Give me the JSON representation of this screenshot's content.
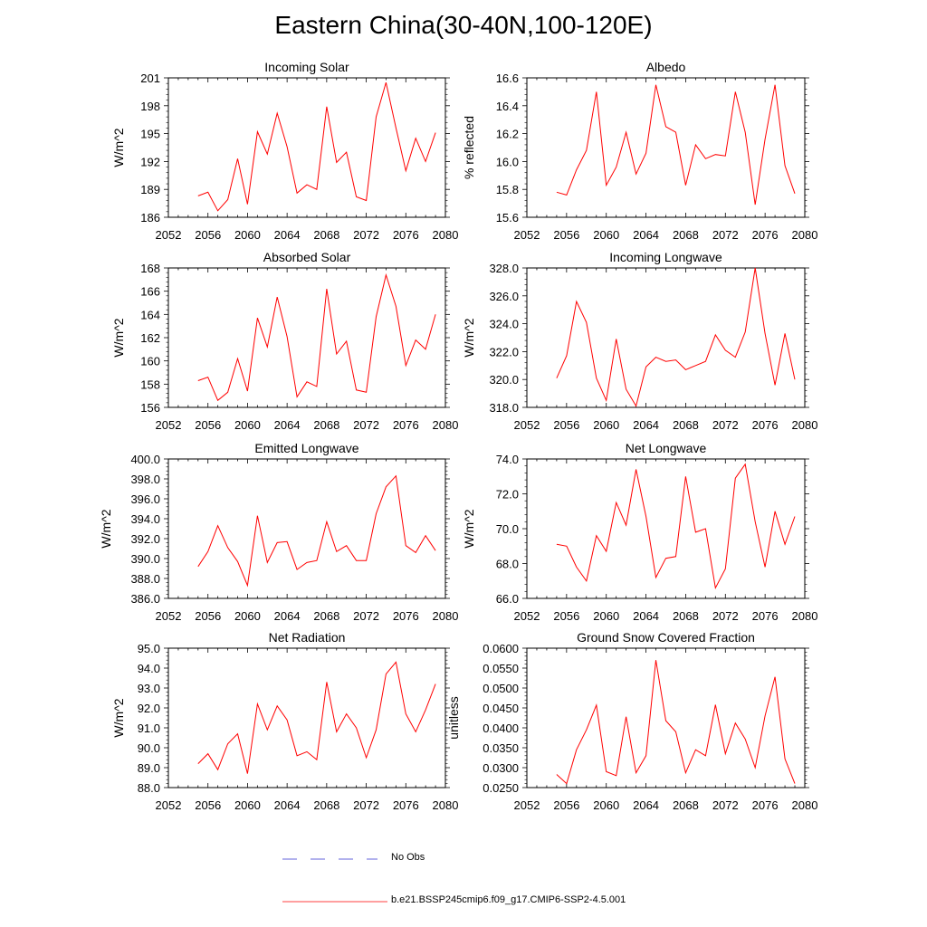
{
  "title": "Eastern China(30-40N,100-120E)",
  "colors": {
    "model": "#ff0000",
    "obs": "#3030d0",
    "axis": "#000000"
  },
  "legend": [
    {
      "label": "No Obs",
      "style": "dashed",
      "color": "#3030d0"
    },
    {
      "label": "b.e21.BSSP245cmip6.f09_g17.CMIP6-SSP2-4.5.001",
      "style": "solid",
      "color": "#ff0000"
    }
  ],
  "chart_data": [
    {
      "type": "line",
      "title": "Incoming Solar",
      "ylabel": "W/m^2",
      "xlim": [
        2052,
        2080
      ],
      "ylim": [
        186,
        201
      ],
      "xticks": [
        "2052",
        "2056",
        "2060",
        "2064",
        "2068",
        "2072",
        "2076",
        "2080"
      ],
      "yticks": [
        "186",
        "189",
        "192",
        "195",
        "198",
        "201"
      ],
      "x": [
        2055,
        2056,
        2057,
        2058,
        2059,
        2060,
        2061,
        2062,
        2063,
        2064,
        2065,
        2066,
        2067,
        2068,
        2069,
        2070,
        2071,
        2072,
        2073,
        2074,
        2075,
        2076,
        2077,
        2078,
        2079
      ],
      "series": [
        {
          "values": [
            188.3,
            188.7,
            186.7,
            187.9,
            192.3,
            187.4,
            195.2,
            192.8,
            197.2,
            193.6,
            188.6,
            189.5,
            189.0,
            197.9,
            191.9,
            193.0,
            188.2,
            187.8,
            196.8,
            200.5,
            195.6,
            191.0,
            194.5,
            192.0,
            195.1
          ]
        }
      ]
    },
    {
      "type": "line",
      "title": "Albedo",
      "ylabel": "% reflected",
      "xlim": [
        2052,
        2080
      ],
      "ylim": [
        15.6,
        16.6
      ],
      "xticks": [
        "2052",
        "2056",
        "2060",
        "2064",
        "2068",
        "2072",
        "2076",
        "2080"
      ],
      "yticks": [
        "15.6",
        "15.8",
        "16.0",
        "16.2",
        "16.4",
        "16.6"
      ],
      "x": [
        2055,
        2056,
        2057,
        2058,
        2059,
        2060,
        2061,
        2062,
        2063,
        2064,
        2065,
        2066,
        2067,
        2068,
        2069,
        2070,
        2071,
        2072,
        2073,
        2074,
        2075,
        2076,
        2077,
        2078,
        2079
      ],
      "series": [
        {
          "values": [
            15.78,
            15.76,
            15.94,
            16.08,
            16.5,
            15.83,
            15.96,
            16.21,
            15.91,
            16.06,
            16.55,
            16.25,
            16.21,
            15.83,
            16.12,
            16.02,
            16.05,
            16.04,
            16.5,
            16.21,
            15.69,
            16.16,
            16.55,
            15.97,
            15.77
          ]
        }
      ]
    },
    {
      "type": "line",
      "title": "Absorbed Solar",
      "ylabel": "W/m^2",
      "xlim": [
        2052,
        2080
      ],
      "ylim": [
        156,
        168
      ],
      "xticks": [
        "2052",
        "2056",
        "2060",
        "2064",
        "2068",
        "2072",
        "2076",
        "2080"
      ],
      "yticks": [
        "156",
        "158",
        "160",
        "162",
        "164",
        "166",
        "168"
      ],
      "x": [
        2055,
        2056,
        2057,
        2058,
        2059,
        2060,
        2061,
        2062,
        2063,
        2064,
        2065,
        2066,
        2067,
        2068,
        2069,
        2070,
        2071,
        2072,
        2073,
        2074,
        2075,
        2076,
        2077,
        2078,
        2079
      ],
      "series": [
        {
          "values": [
            158.3,
            158.6,
            156.6,
            157.3,
            160.2,
            157.4,
            163.7,
            161.2,
            165.5,
            162.1,
            156.9,
            158.2,
            157.8,
            166.2,
            160.6,
            161.7,
            157.5,
            157.3,
            163.8,
            167.4,
            164.7,
            159.6,
            161.8,
            161.0,
            164.0
          ]
        }
      ]
    },
    {
      "type": "line",
      "title": "Incoming Longwave",
      "ylabel": "W/m^2",
      "xlim": [
        2052,
        2080
      ],
      "ylim": [
        318.0,
        328.0
      ],
      "xticks": [
        "2052",
        "2056",
        "2060",
        "2064",
        "2068",
        "2072",
        "2076",
        "2080"
      ],
      "yticks": [
        "318.0",
        "320.0",
        "322.0",
        "324.0",
        "326.0",
        "328.0"
      ],
      "x": [
        2055,
        2056,
        2057,
        2058,
        2059,
        2060,
        2061,
        2062,
        2063,
        2064,
        2065,
        2066,
        2067,
        2068,
        2069,
        2070,
        2071,
        2072,
        2073,
        2074,
        2075,
        2076,
        2077,
        2078,
        2079
      ],
      "series": [
        {
          "values": [
            320.1,
            321.7,
            325.6,
            324.1,
            320.1,
            318.5,
            322.9,
            319.3,
            318.1,
            320.9,
            321.6,
            321.3,
            321.4,
            320.7,
            321.0,
            321.3,
            323.2,
            322.1,
            321.6,
            323.4,
            328.0,
            323.3,
            319.6,
            323.3,
            320.0
          ]
        }
      ]
    },
    {
      "type": "line",
      "title": "Emitted Longwave",
      "ylabel": "W/m^2",
      "xlim": [
        2052,
        2080
      ],
      "ylim": [
        386.0,
        400.0
      ],
      "xticks": [
        "2052",
        "2056",
        "2060",
        "2064",
        "2068",
        "2072",
        "2076",
        "2080"
      ],
      "yticks": [
        "386.0",
        "388.0",
        "390.0",
        "392.0",
        "394.0",
        "396.0",
        "398.0",
        "400.0"
      ],
      "x": [
        2055,
        2056,
        2057,
        2058,
        2059,
        2060,
        2061,
        2062,
        2063,
        2064,
        2065,
        2066,
        2067,
        2068,
        2069,
        2070,
        2071,
        2072,
        2073,
        2074,
        2075,
        2076,
        2077,
        2078,
        2079
      ],
      "series": [
        {
          "values": [
            389.2,
            390.7,
            393.3,
            391.1,
            389.7,
            387.3,
            394.3,
            389.6,
            391.6,
            391.7,
            388.9,
            389.6,
            389.8,
            393.7,
            390.7,
            391.3,
            389.8,
            389.8,
            394.5,
            397.2,
            398.3,
            391.3,
            390.6,
            392.3,
            390.8
          ]
        }
      ]
    },
    {
      "type": "line",
      "title": "Net Longwave",
      "ylabel": "W/m^2",
      "xlim": [
        2052,
        2080
      ],
      "ylim": [
        66.0,
        74.0
      ],
      "xticks": [
        "2052",
        "2056",
        "2060",
        "2064",
        "2068",
        "2072",
        "2076",
        "2080"
      ],
      "yticks": [
        "66.0",
        "68.0",
        "70.0",
        "72.0",
        "74.0"
      ],
      "x": [
        2055,
        2056,
        2057,
        2058,
        2059,
        2060,
        2061,
        2062,
        2063,
        2064,
        2065,
        2066,
        2067,
        2068,
        2069,
        2070,
        2071,
        2072,
        2073,
        2074,
        2075,
        2076,
        2077,
        2078,
        2079
      ],
      "series": [
        {
          "values": [
            69.1,
            69.0,
            67.8,
            67.0,
            69.6,
            68.7,
            71.5,
            70.2,
            73.4,
            70.7,
            67.2,
            68.3,
            68.4,
            73.0,
            69.8,
            70.0,
            66.6,
            67.7,
            72.9,
            73.7,
            70.4,
            67.8,
            71.0,
            69.1,
            70.7
          ]
        }
      ]
    },
    {
      "type": "line",
      "title": "Net Radiation",
      "ylabel": "W/m^2",
      "xlim": [
        2052,
        2080
      ],
      "ylim": [
        88.0,
        95.0
      ],
      "xticks": [
        "2052",
        "2056",
        "2060",
        "2064",
        "2068",
        "2072",
        "2076",
        "2080"
      ],
      "yticks": [
        "88.0",
        "89.0",
        "90.0",
        "91.0",
        "92.0",
        "93.0",
        "94.0",
        "95.0"
      ],
      "x": [
        2055,
        2056,
        2057,
        2058,
        2059,
        2060,
        2061,
        2062,
        2063,
        2064,
        2065,
        2066,
        2067,
        2068,
        2069,
        2070,
        2071,
        2072,
        2073,
        2074,
        2075,
        2076,
        2077,
        2078,
        2079
      ],
      "series": [
        {
          "values": [
            89.2,
            89.7,
            88.9,
            90.2,
            90.7,
            88.7,
            92.2,
            90.9,
            92.1,
            91.4,
            89.6,
            89.8,
            89.4,
            93.3,
            90.8,
            91.7,
            91.0,
            89.5,
            90.9,
            93.7,
            94.3,
            91.7,
            90.8,
            91.9,
            93.2
          ]
        }
      ]
    },
    {
      "type": "line",
      "title": "Ground Snow Covered Fraction",
      "ylabel": "unitless",
      "xlim": [
        2052,
        2080
      ],
      "ylim": [
        0.025,
        0.06
      ],
      "xticks": [
        "2052",
        "2056",
        "2060",
        "2064",
        "2068",
        "2072",
        "2076",
        "2080"
      ],
      "yticks": [
        "0.0250",
        "0.0300",
        "0.0350",
        "0.0400",
        "0.0450",
        "0.0500",
        "0.0550",
        "0.0600"
      ],
      "x": [
        2055,
        2056,
        2057,
        2058,
        2059,
        2060,
        2061,
        2062,
        2063,
        2064,
        2065,
        2066,
        2067,
        2068,
        2069,
        2070,
        2071,
        2072,
        2073,
        2074,
        2075,
        2076,
        2077,
        2078,
        2079
      ],
      "series": [
        {
          "values": [
            0.0283,
            0.026,
            0.0345,
            0.0395,
            0.0457,
            0.029,
            0.028,
            0.0428,
            0.0287,
            0.033,
            0.057,
            0.0418,
            0.039,
            0.0287,
            0.0345,
            0.033,
            0.0458,
            0.0335,
            0.0412,
            0.0372,
            0.03,
            0.043,
            0.0528,
            0.0322,
            0.026
          ]
        }
      ]
    }
  ]
}
